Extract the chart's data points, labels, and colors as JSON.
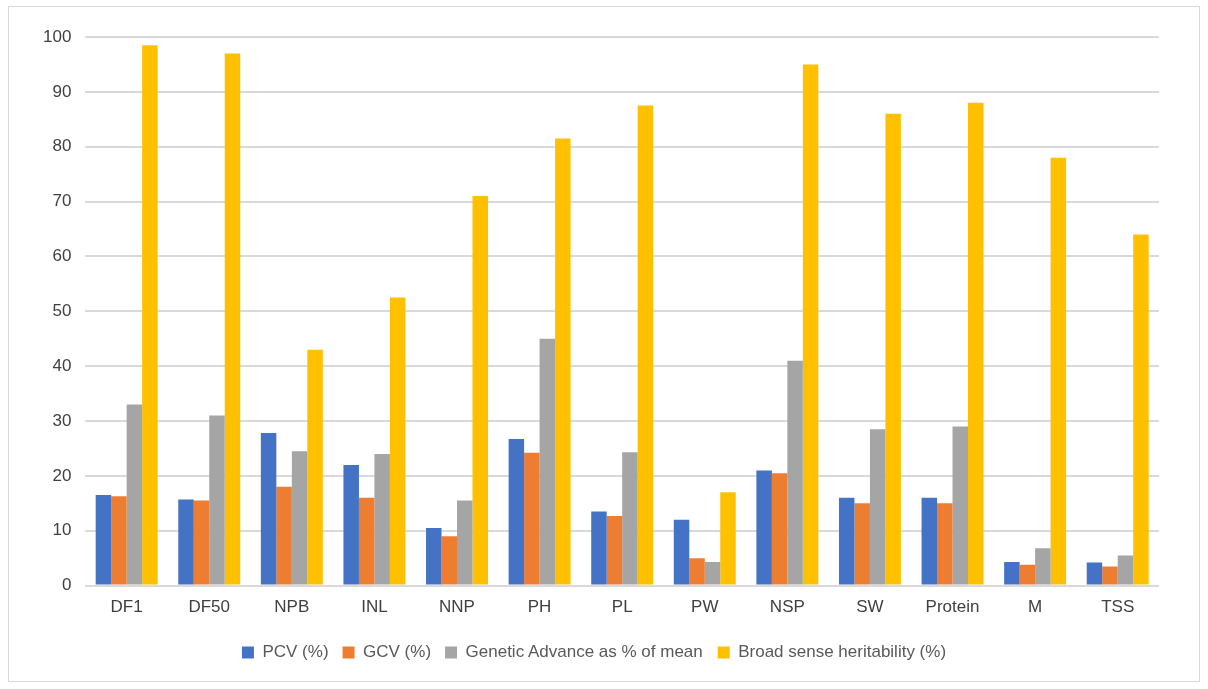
{
  "chart_data": {
    "type": "bar",
    "categories": [
      "DF1",
      "DF50",
      "NPB",
      "INL",
      "NNP",
      "PH",
      "PL",
      "PW",
      "NSP",
      "SW",
      "Protein",
      "M",
      "TSS"
    ],
    "series": [
      {
        "name": "PCV (%)",
        "color": "#4472c4",
        "values": [
          16.5,
          15.7,
          27.8,
          22,
          10.5,
          26.7,
          13.5,
          12,
          21,
          16,
          16,
          4.3,
          4.2
        ]
      },
      {
        "name": "GCV (%)",
        "color": "#ed7d31",
        "values": [
          16.3,
          15.5,
          18,
          16,
          9,
          24.2,
          12.7,
          5,
          20.5,
          15,
          15,
          3.8,
          3.5
        ]
      },
      {
        "name": "Genetic Advance as % of mean",
        "color": "#a5a5a5",
        "values": [
          33,
          31,
          24.5,
          24,
          15.5,
          45,
          24.3,
          4.3,
          41,
          28.5,
          29,
          6.8,
          5.5
        ]
      },
      {
        "name": "Broad sense heritability (%)",
        "color": "#ffc000",
        "values": [
          98.5,
          97,
          43,
          52.5,
          71,
          81.5,
          87.5,
          17,
          95,
          86,
          88,
          78,
          64
        ]
      }
    ],
    "ylim": [
      0,
      100
    ],
    "yticks": [
      0,
      10,
      20,
      30,
      40,
      50,
      60,
      70,
      80,
      90,
      100
    ],
    "grid": "y",
    "legend": "bottom"
  }
}
